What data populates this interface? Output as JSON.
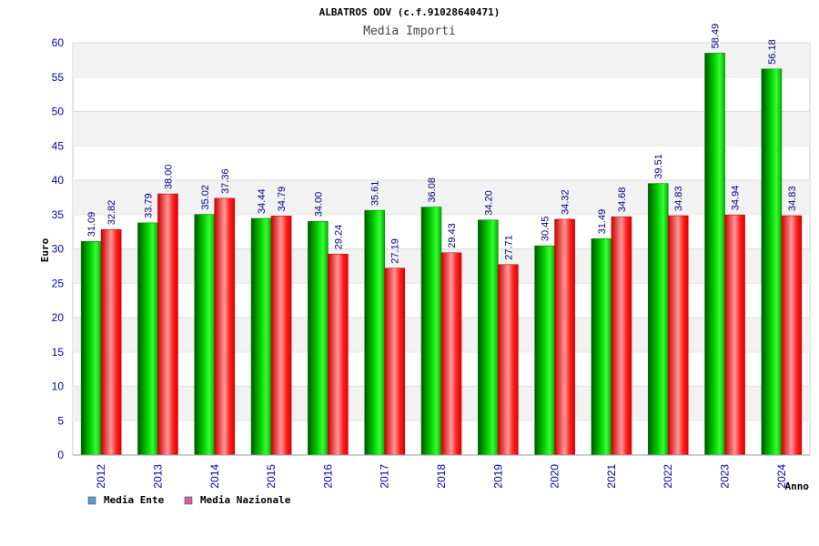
{
  "chart_data": {
    "type": "bar",
    "title": "ALBATROS ODV (c.f.91028640471)",
    "subtitle": "Media Importi",
    "xlabel": "Anno",
    "ylabel": "Euro",
    "ylim": [
      0,
      60
    ],
    "ytick_step": 5,
    "grid": "horizontal-bands",
    "legend_position": "bottom-left",
    "categories": [
      "2012",
      "2013",
      "2014",
      "2015",
      "2016",
      "2017",
      "2018",
      "2019",
      "2020",
      "2021",
      "2022",
      "2023",
      "2024"
    ],
    "series": [
      {
        "name": "Media Ente",
        "color": "#00cc00",
        "legend_color": "#5b9bd5",
        "values": [
          31.09,
          33.79,
          35.02,
          34.44,
          34.0,
          35.61,
          36.08,
          34.2,
          30.45,
          31.49,
          39.51,
          58.49,
          56.18
        ],
        "labels": [
          "31.09",
          "33.79",
          "35.02",
          "34.44",
          "34.00",
          "35.61",
          "36.08",
          "34.20",
          "30.45",
          "31.49",
          "39.51",
          "58.49",
          "56.18"
        ]
      },
      {
        "name": "Media Nazionale",
        "color": "#ee0000",
        "legend_color": "#cc6699",
        "values": [
          32.82,
          38.0,
          37.36,
          34.79,
          29.24,
          27.19,
          29.43,
          27.71,
          34.32,
          34.68,
          34.83,
          34.94,
          34.83
        ],
        "labels": [
          "32.82",
          "38.00",
          "37.36",
          "34.79",
          "29.24",
          "27.19",
          "29.43",
          "27.71",
          "34.32",
          "34.68",
          "34.83",
          "34.94",
          "34.83"
        ]
      }
    ]
  }
}
